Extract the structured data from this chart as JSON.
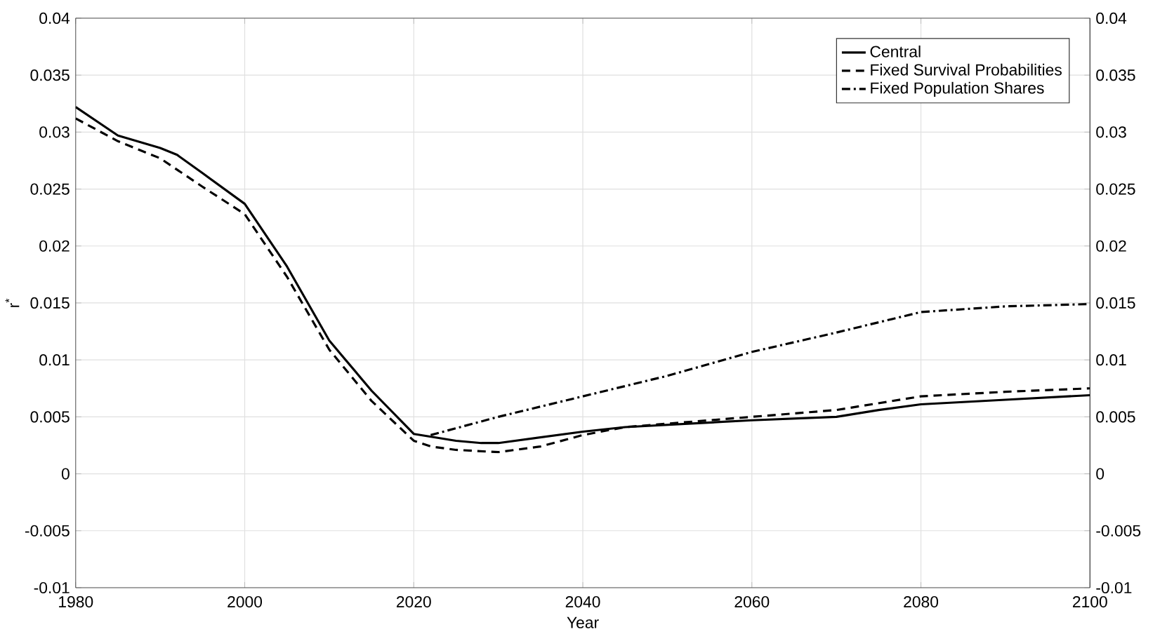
{
  "chart_data": {
    "type": "line",
    "xlabel": "Year",
    "ylabel": "r$^{*}$",
    "xlim": [
      1980,
      2100
    ],
    "xticks": [
      1980,
      2000,
      2020,
      2040,
      2060,
      2080,
      2100
    ],
    "ylim": [
      -0.01,
      0.04
    ],
    "yticks": [
      -0.01,
      -0.005,
      0,
      0.005,
      0.01,
      0.015,
      0.02,
      0.025,
      0.03,
      0.035,
      0.04
    ],
    "y2lim": [
      -0.01,
      0.04
    ],
    "y2ticks": [
      -0.01,
      -0.005,
      0,
      0.005,
      0.01,
      0.015,
      0.02,
      0.025,
      0.03,
      0.035,
      0.04
    ],
    "grid": true,
    "legend": "top right",
    "series": [
      {
        "name": "Central",
        "color": "#000000",
        "line_style": "solid",
        "x": [
          1980,
          1985,
          1990,
          1992,
          1995,
          2000,
          2005,
          2010,
          2015,
          2020,
          2025,
          2028,
          2030,
          2035,
          2040,
          2045,
          2050,
          2055,
          2060,
          2070,
          2075,
          2080,
          2090,
          2100
        ],
        "values": [
          0.0322,
          0.0297,
          0.0286,
          0.028,
          0.0264,
          0.0237,
          0.0182,
          0.0117,
          0.0073,
          0.0035,
          0.0029,
          0.0027,
          0.0027,
          0.0032,
          0.0037,
          0.0041,
          0.0043,
          0.0045,
          0.0047,
          0.005,
          0.0056,
          0.0061,
          0.0065,
          0.0069
        ]
      },
      {
        "name": "Fixed Survival Probabilities",
        "color": "#000000",
        "line_style": "dashed",
        "x": [
          1980,
          1985,
          1990,
          1995,
          2000,
          2005,
          2010,
          2015,
          2020,
          2022,
          2025,
          2030,
          2035,
          2040,
          2045,
          2050,
          2055,
          2060,
          2070,
          2080,
          2090,
          2100
        ],
        "values": [
          0.0312,
          0.0292,
          0.0277,
          0.0252,
          0.0228,
          0.0173,
          0.0109,
          0.0064,
          0.0029,
          0.0024,
          0.0021,
          0.0019,
          0.0024,
          0.0034,
          0.0041,
          0.0044,
          0.0047,
          0.005,
          0.0056,
          0.0068,
          0.0072,
          0.0075
        ]
      },
      {
        "name": "Fixed Population Shares",
        "color": "#000000",
        "line_style": "dashdot",
        "x": [
          2022,
          2030,
          2040,
          2050,
          2060,
          2070,
          2080,
          2090,
          2100
        ],
        "values": [
          0.0034,
          0.005,
          0.0068,
          0.0086,
          0.0107,
          0.0124,
          0.0142,
          0.0147,
          0.0149
        ]
      }
    ]
  }
}
